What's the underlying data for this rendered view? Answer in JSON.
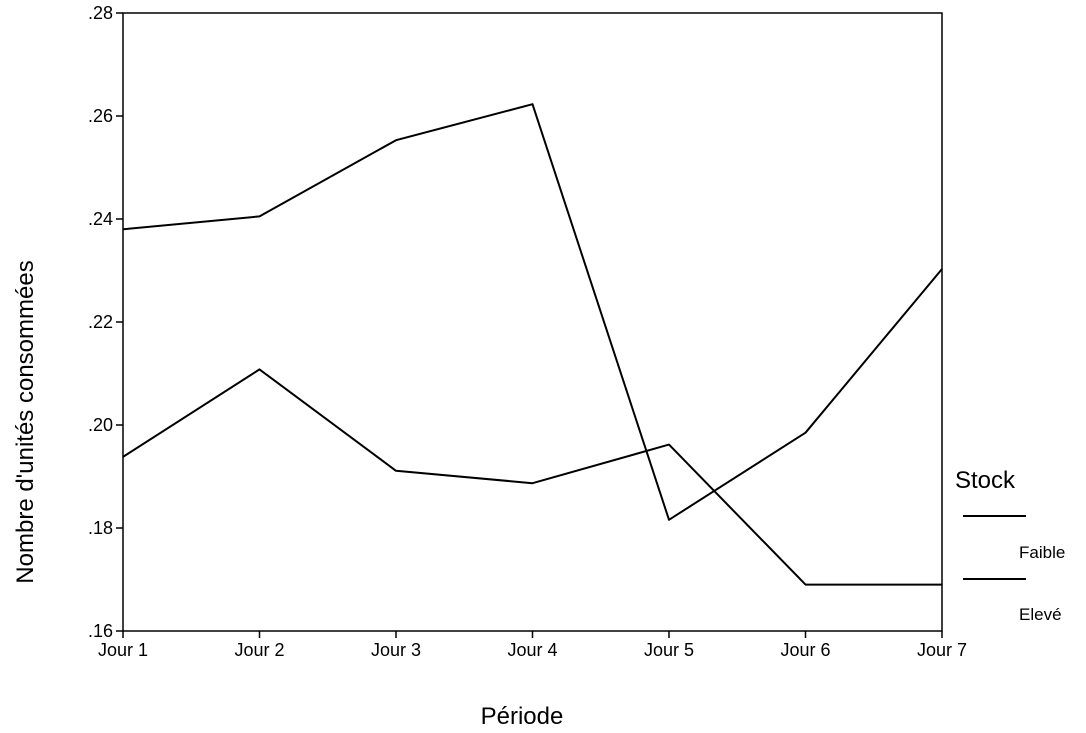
{
  "chart_data": {
    "type": "line",
    "title": "",
    "xlabel": "Période",
    "ylabel": "Nombre d'unités consommées",
    "categories": [
      "Jour 1",
      "Jour 2",
      "Jour 3",
      "Jour 4",
      "Jour 5",
      "Jour 6",
      "Jour 7"
    ],
    "ylim": [
      0.16,
      0.28
    ],
    "yticks": [
      ".16",
      ".18",
      ".20",
      ".22",
      ".24",
      ".26",
      ".28"
    ],
    "ytick_values": [
      0.16,
      0.18,
      0.2,
      0.22,
      0.24,
      0.26,
      0.28
    ],
    "grid": false,
    "legend": {
      "title": "Stock",
      "position": "right",
      "entries": [
        "Faible",
        "Elevé"
      ]
    },
    "series": [
      {
        "name": "Faible",
        "values": [
          0.238,
          0.2405,
          0.2553,
          0.2623,
          0.1816,
          0.1985,
          0.2303
        ],
        "color": "#000000"
      },
      {
        "name": "Elevé",
        "values": [
          0.1938,
          0.2108,
          0.1911,
          0.1887,
          0.1962,
          0.169,
          0.169
        ],
        "color": "#000000"
      }
    ]
  }
}
